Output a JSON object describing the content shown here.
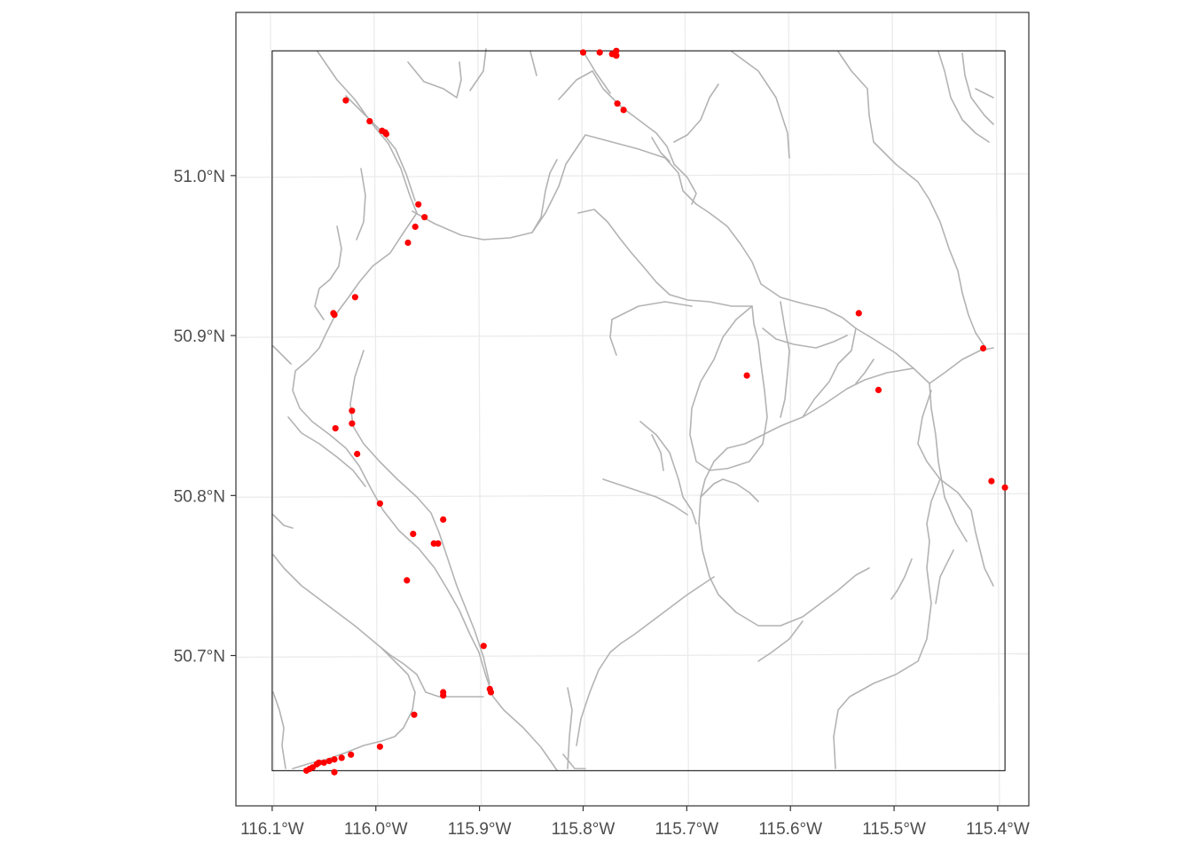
{
  "map": {
    "x_ticks": [
      {
        "lon": -116.1,
        "label": "116.1°W"
      },
      {
        "lon": -116.0,
        "label": "116.0°W"
      },
      {
        "lon": -115.9,
        "label": "115.9°W"
      },
      {
        "lon": -115.8,
        "label": "115.8°W"
      },
      {
        "lon": -115.7,
        "label": "115.7°W"
      },
      {
        "lon": -115.6,
        "label": "115.6°W"
      },
      {
        "lon": -115.5,
        "label": "115.5°W"
      },
      {
        "lon": -115.4,
        "label": "115.4°W"
      }
    ],
    "y_ticks": [
      {
        "lat": 51.0,
        "label": "51.0°N"
      },
      {
        "lat": 50.9,
        "label": "50.9°N"
      },
      {
        "lat": 50.8,
        "label": "50.8°N"
      },
      {
        "lat": 50.7,
        "label": "50.7°N"
      }
    ],
    "extent": {
      "lon_min": -116.135,
      "lon_max": -115.37,
      "lat_min": 50.606,
      "lat_max": 51.102
    },
    "study_area": {
      "lon_min": -116.1,
      "lon_max": -115.393,
      "lat_min": 50.628,
      "lat_max": 51.078
    },
    "colors": {
      "points": "#ff0000",
      "roads": "#b3b3b3",
      "grid": "#ebebeb",
      "frame": "#333333",
      "study_area": "#000000"
    },
    "points": [
      [
        -116.029,
        51.047
      ],
      [
        -116.006,
        51.034
      ],
      [
        -115.994,
        51.028
      ],
      [
        -115.991,
        51.027
      ],
      [
        -115.99,
        51.026
      ],
      [
        -115.959,
        50.982
      ],
      [
        -115.953,
        50.974
      ],
      [
        -115.962,
        50.968
      ],
      [
        -115.969,
        50.958
      ],
      [
        -116.02,
        50.924
      ],
      [
        -116.041,
        50.914
      ],
      [
        -116.04,
        50.913
      ],
      [
        -116.023,
        50.853
      ],
      [
        -116.023,
        50.845
      ],
      [
        -116.039,
        50.842
      ],
      [
        -116.018,
        50.826
      ],
      [
        -115.996,
        50.795
      ],
      [
        -115.935,
        50.785
      ],
      [
        -115.964,
        50.776
      ],
      [
        -115.944,
        50.77
      ],
      [
        -115.94,
        50.77
      ],
      [
        -115.97,
        50.747
      ],
      [
        -115.896,
        50.706
      ],
      [
        -115.89,
        50.679
      ],
      [
        -115.889,
        50.677
      ],
      [
        -115.935,
        50.677
      ],
      [
        -115.935,
        50.675
      ],
      [
        -115.963,
        50.663
      ],
      [
        -115.996,
        50.643
      ],
      [
        -116.024,
        50.638
      ],
      [
        -116.033,
        50.636
      ],
      [
        -116.04,
        50.635
      ],
      [
        -116.045,
        50.634
      ],
      [
        -116.05,
        50.633
      ],
      [
        -116.055,
        50.633
      ],
      [
        -116.057,
        50.632
      ],
      [
        -116.061,
        50.63
      ],
      [
        -116.064,
        50.629
      ],
      [
        -116.067,
        50.628
      ],
      [
        -116.04,
        50.627
      ],
      [
        -115.8,
        51.077
      ],
      [
        -115.784,
        51.077
      ],
      [
        -115.772,
        51.076
      ],
      [
        -115.768,
        51.078
      ],
      [
        -115.768,
        51.075
      ],
      [
        -115.77,
        51.076
      ],
      [
        -115.767,
        51.045
      ],
      [
        -115.761,
        51.041
      ],
      [
        -115.642,
        50.875
      ],
      [
        -115.534,
        50.914
      ],
      [
        -115.515,
        50.866
      ],
      [
        -115.414,
        50.892
      ],
      [
        -115.406,
        50.809
      ],
      [
        -115.393,
        50.805
      ]
    ]
  }
}
